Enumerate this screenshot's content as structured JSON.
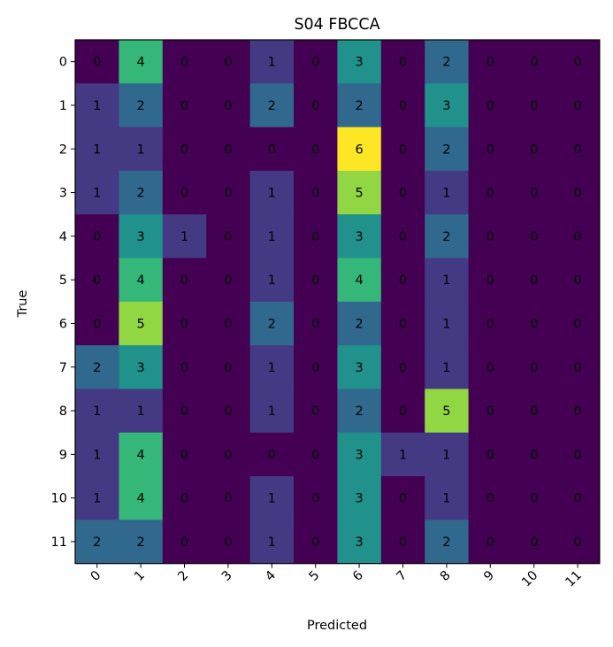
{
  "chart_data": {
    "type": "heatmap",
    "title": "S04 FBCCA",
    "xlabel": "Predicted",
    "ylabel": "True",
    "x_tick_labels": [
      "0",
      "1",
      "2",
      "3",
      "4",
      "5",
      "6",
      "7",
      "8",
      "9",
      "10",
      "11"
    ],
    "y_tick_labels": [
      "0",
      "1",
      "2",
      "3",
      "4",
      "5",
      "6",
      "7",
      "8",
      "9",
      "10",
      "11"
    ],
    "colormap": "viridis",
    "value_range": [
      0,
      6
    ],
    "matrix": [
      [
        0,
        4,
        0,
        0,
        1,
        0,
        3,
        0,
        2,
        0,
        0,
        0
      ],
      [
        1,
        2,
        0,
        0,
        2,
        0,
        2,
        0,
        3,
        0,
        0,
        0
      ],
      [
        1,
        1,
        0,
        0,
        0,
        0,
        6,
        0,
        2,
        0,
        0,
        0
      ],
      [
        1,
        2,
        0,
        0,
        1,
        0,
        5,
        0,
        1,
        0,
        0,
        0
      ],
      [
        0,
        3,
        1,
        0,
        1,
        0,
        3,
        0,
        2,
        0,
        0,
        0
      ],
      [
        0,
        4,
        0,
        0,
        1,
        0,
        4,
        0,
        1,
        0,
        0,
        0
      ],
      [
        0,
        5,
        0,
        0,
        2,
        0,
        2,
        0,
        1,
        0,
        0,
        0
      ],
      [
        2,
        3,
        0,
        0,
        1,
        0,
        3,
        0,
        1,
        0,
        0,
        0
      ],
      [
        1,
        1,
        0,
        0,
        1,
        0,
        2,
        0,
        5,
        0,
        0,
        0
      ],
      [
        1,
        4,
        0,
        0,
        0,
        0,
        3,
        1,
        1,
        0,
        0,
        0
      ],
      [
        1,
        4,
        0,
        0,
        1,
        0,
        3,
        0,
        1,
        0,
        0,
        0
      ],
      [
        2,
        2,
        0,
        0,
        1,
        0,
        3,
        0,
        2,
        0,
        0,
        0
      ]
    ],
    "colors": {
      "0": "#440154",
      "1": "#443983",
      "2": "#31688e",
      "3": "#21918c",
      "4": "#35b779",
      "5": "#90d743",
      "6": "#fde725"
    }
  }
}
